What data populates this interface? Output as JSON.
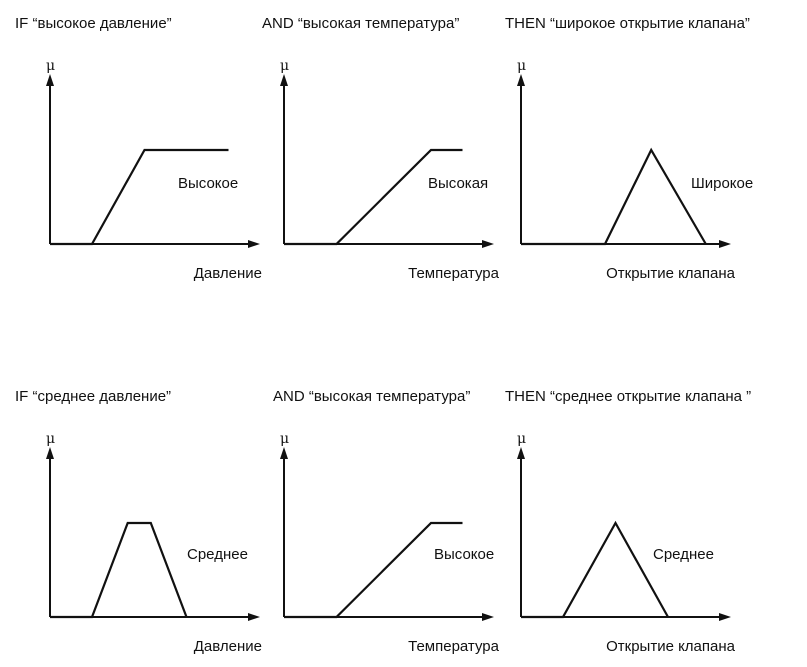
{
  "chart_data": [
    {
      "type": "line",
      "title": "IF “высокое давление”",
      "ylabel": "μ",
      "xlabel": "Давление",
      "term": "Высокое",
      "shape": "right-shoulder",
      "xlim": [
        0,
        100
      ],
      "ylim": [
        0,
        1
      ],
      "points": [
        [
          0,
          0
        ],
        [
          20,
          0
        ],
        [
          45,
          1
        ],
        [
          85,
          1
        ]
      ]
    },
    {
      "type": "line",
      "title": "AND “высокая температура”",
      "ylabel": "μ",
      "xlabel": "Температура",
      "term": "Высокая",
      "shape": "right-shoulder",
      "xlim": [
        0,
        100
      ],
      "ylim": [
        0,
        1
      ],
      "points": [
        [
          0,
          0
        ],
        [
          25,
          0
        ],
        [
          70,
          1
        ],
        [
          85,
          1
        ]
      ]
    },
    {
      "type": "line",
      "title": "THEN “широкое открытие клапана”",
      "ylabel": "μ",
      "xlabel": "Открытие клапана",
      "term": "Широкое",
      "shape": "triangle",
      "xlim": [
        0,
        100
      ],
      "ylim": [
        0,
        1
      ],
      "points": [
        [
          0,
          0
        ],
        [
          40,
          0
        ],
        [
          62,
          1
        ],
        [
          88,
          0
        ]
      ]
    },
    {
      "type": "line",
      "title": "IF “среднее давление”",
      "ylabel": "μ",
      "xlabel": "Давление",
      "term": "Среднее",
      "shape": "trapezoid",
      "xlim": [
        0,
        100
      ],
      "ylim": [
        0,
        1
      ],
      "points": [
        [
          0,
          0
        ],
        [
          20,
          0
        ],
        [
          37,
          1
        ],
        [
          48,
          1
        ],
        [
          65,
          0
        ]
      ]
    },
    {
      "type": "line",
      "title": "AND “высокая температура”",
      "ylabel": "μ",
      "xlabel": "Температура",
      "term": "Высокое",
      "shape": "right-shoulder",
      "xlim": [
        0,
        100
      ],
      "ylim": [
        0,
        1
      ],
      "points": [
        [
          0,
          0
        ],
        [
          25,
          0
        ],
        [
          70,
          1
        ],
        [
          85,
          1
        ]
      ]
    },
    {
      "type": "line",
      "title": "THEN “среднее открытие клапана ”",
      "ylabel": "μ",
      "xlabel": "Открытие клапана",
      "term": "Среднее",
      "shape": "triangle",
      "xlim": [
        0,
        100
      ],
      "ylim": [
        0,
        1
      ],
      "points": [
        [
          0,
          0
        ],
        [
          20,
          0
        ],
        [
          45,
          1
        ],
        [
          70,
          0
        ]
      ]
    }
  ]
}
